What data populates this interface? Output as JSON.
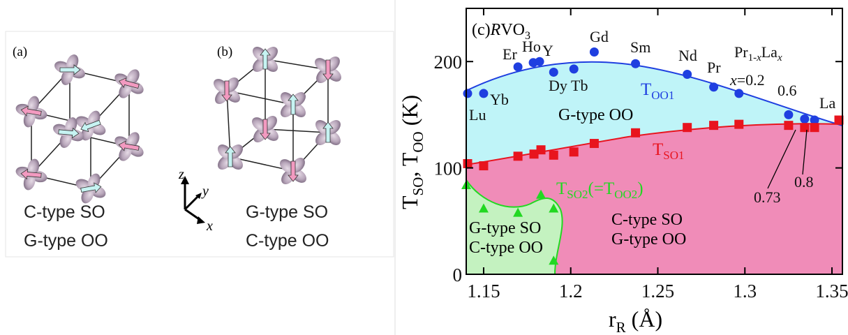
{
  "diagram": {
    "panels": [
      {
        "tag": "(a)",
        "lines": [
          "C-type SO",
          "G-type OO"
        ]
      },
      {
        "tag": "(b)",
        "lines": [
          "G-type SO",
          "C-type OO"
        ]
      }
    ],
    "axes": [
      "z",
      "y",
      "x"
    ]
  },
  "chart_data": {
    "type": "scatter",
    "title": [
      "(c)",
      "R",
      "VO",
      "3"
    ],
    "xlabel": [
      "r",
      "R",
      " (Å)"
    ],
    "ylabel": [
      "T",
      "SO",
      ", T",
      "OO",
      " (K)"
    ],
    "xlim": [
      1.14,
      1.356
    ],
    "xticks": [
      1.15,
      1.2,
      1.25,
      1.3,
      1.35
    ],
    "ylim": [
      0,
      250
    ],
    "yticks": [
      0,
      100,
      200
    ],
    "series": [
      {
        "label": [
          "T",
          "OO1"
        ],
        "color": "#1f3fe0",
        "marker": "circle",
        "x": [
          1.1408,
          1.15,
          1.1697,
          1.1785,
          1.1821,
          1.1902,
          1.2018,
          1.2135,
          1.2372,
          1.2669,
          1.2821,
          1.2966,
          1.3251,
          1.3343,
          1.34
        ],
        "values": [
          170,
          170,
          195,
          199,
          200,
          190,
          193,
          209,
          198,
          188,
          176,
          170,
          150,
          146,
          145
        ]
      },
      {
        "label": [
          "T",
          "SO1"
        ],
        "color": "#e8141e",
        "marker": "square",
        "x": [
          1.1408,
          1.15,
          1.1697,
          1.1789,
          1.1829,
          1.1902,
          1.2018,
          1.2135,
          1.2372,
          1.2669,
          1.2821,
          1.2966,
          1.3251,
          1.3343,
          1.34,
          1.354
        ],
        "values": [
          104,
          102,
          111,
          113,
          117,
          112,
          115,
          123,
          133,
          138,
          140,
          141,
          140,
          138,
          138,
          145
        ]
      },
      {
        "label": [
          "T",
          "SO2",
          "(=T",
          "OO2",
          ")"
        ],
        "color": "#22d822",
        "marker": "triangle",
        "x": [
          1.14,
          1.15,
          1.1697,
          1.1829,
          1.1902,
          1.1902
        ],
        "values": [
          84,
          62,
          58,
          75,
          62,
          13
        ]
      }
    ],
    "annotations": [
      "Lu",
      "Yb",
      "Er",
      "Ho",
      "Y",
      "Dy",
      "Tb",
      "Gd",
      "Sm",
      "Nd",
      "Pr",
      [
        "Pr",
        "1-",
        "x",
        "La",
        "x"
      ],
      [
        "x",
        "=0.2"
      ],
      "0.6",
      "La",
      "0.73",
      "0.8",
      "G-type OO",
      "C-type SO",
      "G-type OO",
      "G-type SO",
      "C-type OO"
    ]
  }
}
